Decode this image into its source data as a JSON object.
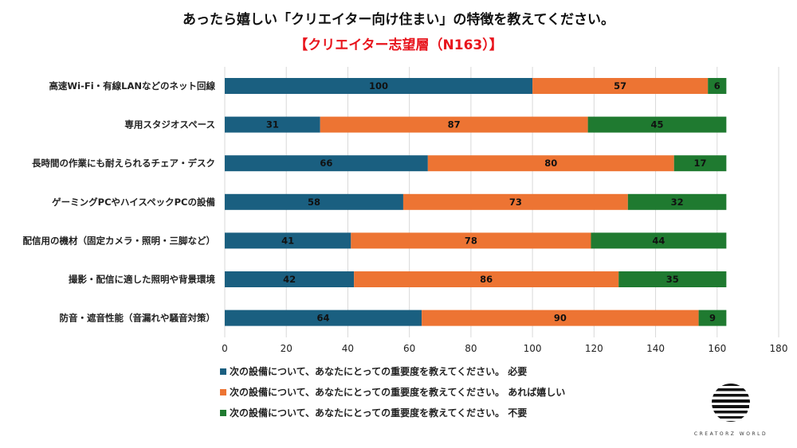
{
  "title": "あったら嬉しい「クリエイター向け住まい」の特徴を教えてください。",
  "subtitle": "【クリエイター志望層（N163）】",
  "logo_text": "CREATORZ WORLD",
  "chart_data": {
    "type": "bar",
    "orientation": "horizontal",
    "stacked": true,
    "title": "あったら嬉しい「クリエイター向け住まい」の特徴を教えてください。",
    "subtitle": "【クリエイター志望層（N163）】",
    "categories": [
      "高速Wi-Fi・有線LANなどのネット回線",
      "専用スタジオスペース",
      "長時間の作業にも耐えられるチェア・デスク",
      "ゲーミングPCやハイスペックPCの設備",
      "配信用の機材（固定カメラ・照明・三脚など）",
      "撮影・配信に適した照明や背景環境",
      "防音・遮音性能（音漏れや騒音対策）"
    ],
    "series": [
      {
        "name": "次の設備について、あなたにとっての重要度を教えてください。 必要",
        "color": "#1a5f80",
        "values": [
          100,
          31,
          66,
          58,
          41,
          42,
          64
        ]
      },
      {
        "name": "次の設備について、あなたにとっての重要度を教えてください。 あれば嬉しい",
        "color": "#ed7433",
        "values": [
          57,
          87,
          80,
          73,
          78,
          86,
          90
        ]
      },
      {
        "name": "次の設備について、あなたにとっての重要度を教えてください。 不要",
        "color": "#1f7a30",
        "values": [
          6,
          45,
          17,
          32,
          44,
          35,
          9
        ]
      }
    ],
    "xlim": [
      0,
      180
    ],
    "xticks": [
      0,
      20,
      40,
      60,
      80,
      100,
      120,
      140,
      160,
      180
    ],
    "grid": true,
    "legend_position": "bottom-left"
  }
}
